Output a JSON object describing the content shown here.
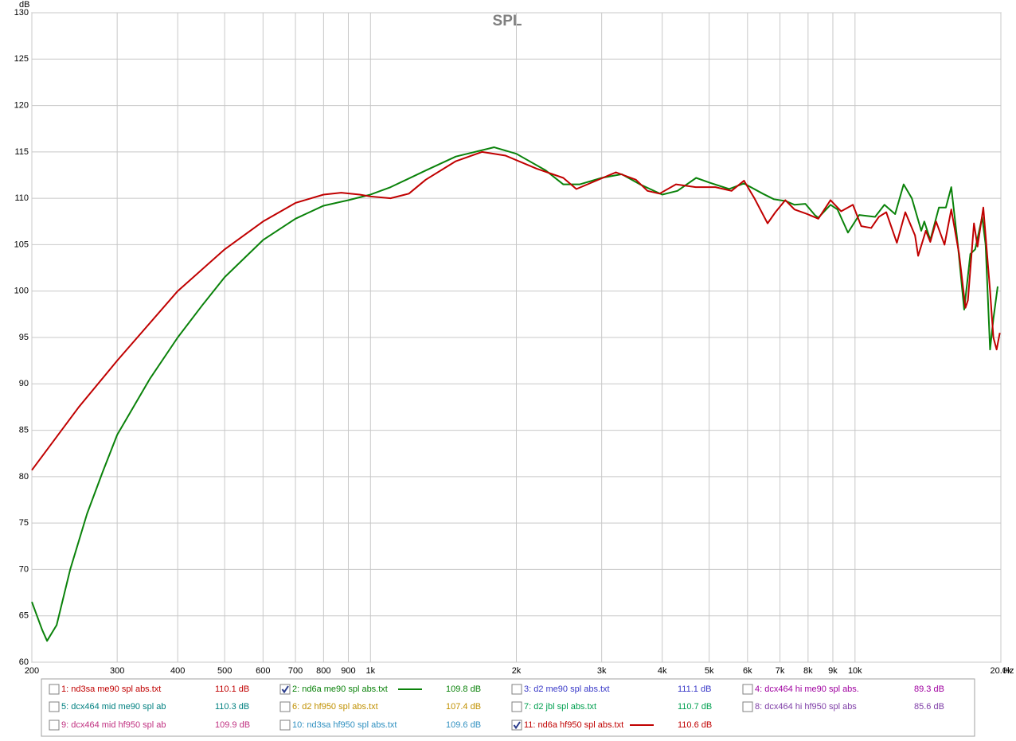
{
  "chart_data": {
    "type": "line",
    "title": "SPL",
    "y_label": "dB",
    "x_label": "Hz",
    "log_x": true,
    "grid": true,
    "xlim": [
      200,
      20000
    ],
    "ylim": [
      60,
      130
    ],
    "yticks": [
      60,
      65,
      70,
      75,
      80,
      85,
      90,
      95,
      100,
      105,
      110,
      115,
      120,
      125,
      130
    ],
    "xticks": [
      200,
      300,
      400,
      500,
      600,
      700,
      800,
      900,
      {
        "value": 1000,
        "label": "1k"
      },
      {
        "value": 2000,
        "label": "2k"
      },
      {
        "value": 3000,
        "label": "3k"
      },
      {
        "value": 4000,
        "label": "4k"
      },
      {
        "value": 5000,
        "label": "5k"
      },
      {
        "value": 6000,
        "label": "6k"
      },
      {
        "value": 7000,
        "label": "7k"
      },
      {
        "value": 8000,
        "label": "8k"
      },
      {
        "value": 9000,
        "label": "9k"
      },
      {
        "value": 10000,
        "label": "10k"
      },
      {
        "value": 20000,
        "label": "20.0k"
      }
    ],
    "series": [
      {
        "color": "#0a820a",
        "x": [
          200,
          210,
          215,
          225,
          240,
          260,
          280,
          300,
          350,
          400,
          450,
          500,
          600,
          700,
          800,
          900,
          1000,
          1100,
          1300,
          1500,
          1800,
          2000,
          2300,
          2500,
          2700,
          3000,
          3300,
          3600,
          4000,
          4300,
          4700,
          5000,
          5500,
          5900,
          6450,
          6800,
          7200,
          7500,
          7900,
          8260,
          8400,
          8900,
          9200,
          9670,
          10200,
          11000,
          11500,
          12100,
          12600,
          13100,
          13700,
          13900,
          14300,
          14900,
          15400,
          15800,
          16300,
          16800,
          17300,
          17700,
          18300,
          18600,
          19000,
          19300,
          19700
        ],
        "values": [
          66.5,
          63.5,
          62.3,
          64,
          70,
          76,
          80.5,
          84.5,
          90.5,
          95,
          98.5,
          101.5,
          105.5,
          107.8,
          109.2,
          109.8,
          110.4,
          111.2,
          113,
          114.5,
          115.5,
          114.8,
          113,
          111.5,
          111.5,
          112.2,
          112.6,
          111.5,
          110.4,
          110.8,
          112.2,
          111.7,
          111,
          111.6,
          110.5,
          109.9,
          109.7,
          109.3,
          109.4,
          108.2,
          107.9,
          109.3,
          108.8,
          106.3,
          108.2,
          108,
          109.3,
          108.3,
          111.5,
          110,
          106.5,
          107.5,
          105.5,
          109,
          109,
          111.2,
          105,
          98,
          104,
          104.5,
          108,
          105,
          93.7,
          97,
          100.5
        ]
      },
      {
        "color": "#c00000",
        "x": [
          200,
          250,
          300,
          400,
          500,
          600,
          700,
          800,
          870,
          950,
          1000,
          1100,
          1200,
          1300,
          1500,
          1700,
          1900,
          2200,
          2500,
          2660,
          3210,
          3530,
          3730,
          3950,
          4270,
          4690,
          5150,
          5560,
          5900,
          6200,
          6600,
          6850,
          7180,
          7500,
          7970,
          8400,
          8900,
          9360,
          9900,
          10300,
          10800,
          11200,
          11600,
          12200,
          12700,
          13300,
          13500,
          14000,
          14300,
          14700,
          15300,
          15800,
          16400,
          16900,
          17100,
          17600,
          17900,
          18400,
          19000,
          19300,
          19600,
          19900
        ],
        "values": [
          80.7,
          87.5,
          92.5,
          100,
          104.5,
          107.5,
          109.5,
          110.4,
          110.6,
          110.4,
          110.2,
          110,
          110.5,
          112,
          114,
          115,
          114.6,
          113.2,
          112.2,
          111,
          112.8,
          112,
          110.8,
          110.5,
          111.5,
          111.2,
          111.2,
          110.8,
          111.9,
          110,
          107.3,
          108.5,
          109.8,
          108.8,
          108.3,
          107.8,
          109.8,
          108.6,
          109.3,
          107,
          106.8,
          108,
          108.5,
          105.2,
          108.5,
          106,
          103.8,
          106.5,
          105.3,
          107.5,
          105,
          108.8,
          104,
          98.2,
          99,
          107.3,
          104.8,
          109,
          100,
          95,
          93.7,
          95.5
        ]
      }
    ],
    "legend_entries": [
      {
        "label": "1: nd3sa me90 spl abs.txt",
        "reading": "110.1 dB",
        "color": "#c00000",
        "checked": false
      },
      {
        "label": "2: nd6a me90 spl abs.txt",
        "reading": "109.8 dB",
        "color": "#0a820a",
        "checked": true
      },
      {
        "label": "3: d2 me90 spl abs.txt",
        "reading": "111.1 dB",
        "color": "#3838c8",
        "checked": false
      },
      {
        "label": "4: dcx464 hi me90 spl abs.",
        "reading": "89.3 dB",
        "color": "#a000a0",
        "checked": false
      },
      {
        "label": "5: dcx464 mid me90 spl ab",
        "reading": "110.3 dB",
        "color": "#008080",
        "checked": false
      },
      {
        "label": "6: d2 hf950 spl abs.txt",
        "reading": "107.4 dB",
        "color": "#c09000",
        "checked": false
      },
      {
        "label": "7: d2 jbl spl abs.txt",
        "reading": "110.7 dB",
        "color": "#00a050",
        "checked": false
      },
      {
        "label": "8: dcx464 hi hf950 spl abs",
        "reading": "85.6 dB",
        "color": "#8040a8",
        "checked": false
      },
      {
        "label": "9: dcx464 mid hf950 spl ab",
        "reading": "109.9 dB",
        "color": "#c03080",
        "checked": false
      },
      {
        "label": "10: nd3sa hf950 spl abs.txt",
        "reading": "109.6 dB",
        "color": "#3090c0",
        "checked": false
      },
      {
        "label": "11: nd6a hf950 spl abs.txt",
        "reading": "110.6 dB",
        "color": "#c00000",
        "checked": true
      }
    ]
  }
}
